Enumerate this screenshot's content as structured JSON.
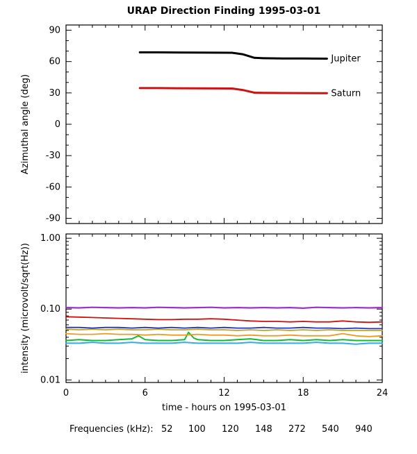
{
  "title": "URAP Direction Finding  1995-03-01",
  "chart_data": [
    {
      "id": "azimuth",
      "type": "line",
      "ylabel": "Azimuthal angle (deg)",
      "yscale": "linear",
      "ylim": [
        -95,
        95
      ],
      "yticks": [
        {
          "v": 90,
          "label": "90"
        },
        {
          "v": 60,
          "label": "60"
        },
        {
          "v": 30,
          "label": "30"
        },
        {
          "v": 0,
          "label": "0"
        },
        {
          "v": -30,
          "label": "-30"
        },
        {
          "v": -60,
          "label": "-60"
        },
        {
          "v": -90,
          "label": "-90"
        }
      ],
      "yminor": 10,
      "xlim": [
        0,
        24
      ],
      "xticks": [
        0,
        6,
        12,
        18,
        24
      ],
      "xminor": 1,
      "show_xtick_labels": false,
      "xlabel": "",
      "series": [
        {
          "name": "Jupiter",
          "color": "#000000",
          "width": 3,
          "end_label": "Jupiter",
          "points": [
            [
              5.6,
              68.8
            ],
            [
              7,
              68.8
            ],
            [
              8.5,
              68.7
            ],
            [
              10,
              68.6
            ],
            [
              11.5,
              68.5
            ],
            [
              12.6,
              68.4
            ],
            [
              13.4,
              67.0
            ],
            [
              14.3,
              63.6
            ],
            [
              15,
              63.2
            ],
            [
              16.5,
              63.0
            ],
            [
              18,
              62.9
            ],
            [
              19.8,
              62.8
            ]
          ]
        },
        {
          "name": "Saturn",
          "color": "#cc1111",
          "width": 3,
          "end_label": "Saturn",
          "points": [
            [
              5.6,
              34.6
            ],
            [
              7,
              34.6
            ],
            [
              8.5,
              34.5
            ],
            [
              10,
              34.4
            ],
            [
              11.5,
              34.3
            ],
            [
              12.6,
              34.2
            ],
            [
              13.4,
              32.8
            ],
            [
              14.3,
              30.2
            ],
            [
              15,
              30.0
            ],
            [
              16.5,
              29.9
            ],
            [
              18,
              29.8
            ],
            [
              19.8,
              29.7
            ]
          ]
        }
      ]
    },
    {
      "id": "intensity",
      "type": "line",
      "ylabel": "intensity (microvolt/sqrt(Hz))",
      "yscale": "log",
      "ylim": [
        0.0092,
        1.15
      ],
      "yticks": [
        {
          "v": 1.0,
          "label": "1.00"
        },
        {
          "v": 0.1,
          "label": "0.10"
        },
        {
          "v": 0.01,
          "label": "0.01"
        }
      ],
      "xlim": [
        0,
        24
      ],
      "xticks": [
        0,
        6,
        12,
        18,
        24
      ],
      "xminor": 1,
      "show_xtick_labels": true,
      "xlabel": "time - hours on 1995-03-01",
      "series": [
        {
          "name": "272",
          "color": "#33aaee",
          "width": 2,
          "points": [
            [
              0,
              0.033
            ],
            [
              1,
              0.033
            ],
            [
              2,
              0.034
            ],
            [
              3,
              0.033
            ],
            [
              4,
              0.033
            ],
            [
              5,
              0.034
            ],
            [
              6,
              0.033
            ],
            [
              7,
              0.033
            ],
            [
              8,
              0.033
            ],
            [
              9,
              0.034
            ],
            [
              10,
              0.033
            ],
            [
              11,
              0.033
            ],
            [
              12,
              0.033
            ],
            [
              13,
              0.033
            ],
            [
              14,
              0.034
            ],
            [
              15,
              0.033
            ],
            [
              16,
              0.033
            ],
            [
              17,
              0.033
            ],
            [
              18,
              0.033
            ],
            [
              19,
              0.034
            ],
            [
              20,
              0.033
            ],
            [
              21,
              0.033
            ],
            [
              22,
              0.032
            ],
            [
              23,
              0.033
            ],
            [
              24,
              0.033
            ]
          ]
        },
        {
          "name": "148",
          "color": "#11bb33",
          "width": 2,
          "points": [
            [
              0,
              0.036
            ],
            [
              1,
              0.037
            ],
            [
              2,
              0.036
            ],
            [
              3,
              0.036
            ],
            [
              4,
              0.037
            ],
            [
              5,
              0.038
            ],
            [
              5.5,
              0.042
            ],
            [
              6,
              0.037
            ],
            [
              7,
              0.036
            ],
            [
              8,
              0.036
            ],
            [
              9,
              0.037
            ],
            [
              9.3,
              0.047
            ],
            [
              9.7,
              0.039
            ],
            [
              10,
              0.037
            ],
            [
              11,
              0.036
            ],
            [
              12,
              0.036
            ],
            [
              13,
              0.037
            ],
            [
              14,
              0.038
            ],
            [
              15,
              0.036
            ],
            [
              16,
              0.036
            ],
            [
              17,
              0.037
            ],
            [
              18,
              0.036
            ],
            [
              19,
              0.037
            ],
            [
              20,
              0.036
            ],
            [
              21,
              0.037
            ],
            [
              22,
              0.036
            ],
            [
              23,
              0.036
            ],
            [
              24,
              0.036
            ]
          ]
        },
        {
          "name": "100",
          "color": "#ee9922",
          "width": 1.8,
          "points": [
            [
              0,
              0.045
            ],
            [
              1,
              0.044
            ],
            [
              2,
              0.044
            ],
            [
              3,
              0.045
            ],
            [
              4,
              0.044
            ],
            [
              5,
              0.044
            ],
            [
              6,
              0.043
            ],
            [
              7,
              0.044
            ],
            [
              8,
              0.043
            ],
            [
              9,
              0.043
            ],
            [
              10,
              0.044
            ],
            [
              11,
              0.043
            ],
            [
              12,
              0.043
            ],
            [
              13,
              0.042
            ],
            [
              14,
              0.043
            ],
            [
              15,
              0.042
            ],
            [
              16,
              0.042
            ],
            [
              17,
              0.043
            ],
            [
              18,
              0.042
            ],
            [
              19,
              0.042
            ],
            [
              20,
              0.042
            ],
            [
              21,
              0.045
            ],
            [
              22,
              0.042
            ],
            [
              23,
              0.041
            ],
            [
              24,
              0.042
            ]
          ]
        },
        {
          "name": "120",
          "color": "#c2a41c",
          "width": 1.8,
          "points": [
            [
              0,
              0.052
            ],
            [
              1,
              0.051
            ],
            [
              2,
              0.052
            ],
            [
              3,
              0.051
            ],
            [
              4,
              0.052
            ],
            [
              5,
              0.051
            ],
            [
              6,
              0.051
            ],
            [
              7,
              0.052
            ],
            [
              8,
              0.051
            ],
            [
              9,
              0.051
            ],
            [
              10,
              0.052
            ],
            [
              11,
              0.051
            ],
            [
              12,
              0.051
            ],
            [
              13,
              0.05
            ],
            [
              14,
              0.051
            ],
            [
              15,
              0.05
            ],
            [
              16,
              0.051
            ],
            [
              17,
              0.05
            ],
            [
              18,
              0.051
            ],
            [
              19,
              0.05
            ],
            [
              20,
              0.051
            ],
            [
              21,
              0.05
            ],
            [
              22,
              0.05
            ],
            [
              23,
              0.05
            ],
            [
              24,
              0.05
            ]
          ]
        },
        {
          "name": "540",
          "color": "#2233bb",
          "width": 1.8,
          "points": [
            [
              0,
              0.055
            ],
            [
              1,
              0.055
            ],
            [
              2,
              0.054
            ],
            [
              3,
              0.055
            ],
            [
              4,
              0.055
            ],
            [
              5,
              0.054
            ],
            [
              6,
              0.055
            ],
            [
              7,
              0.054
            ],
            [
              8,
              0.055
            ],
            [
              9,
              0.054
            ],
            [
              10,
              0.055
            ],
            [
              11,
              0.054
            ],
            [
              12,
              0.055
            ],
            [
              13,
              0.054
            ],
            [
              14,
              0.054
            ],
            [
              15,
              0.055
            ],
            [
              16,
              0.054
            ],
            [
              17,
              0.054
            ],
            [
              18,
              0.055
            ],
            [
              19,
              0.054
            ],
            [
              20,
              0.054
            ],
            [
              21,
              0.053
            ],
            [
              22,
              0.054
            ],
            [
              23,
              0.053
            ],
            [
              24,
              0.053
            ]
          ]
        },
        {
          "name": "52",
          "color": "#cc1111",
          "width": 1.8,
          "points": [
            [
              0,
              0.078
            ],
            [
              1,
              0.077
            ],
            [
              2,
              0.076
            ],
            [
              3,
              0.075
            ],
            [
              4,
              0.074
            ],
            [
              5,
              0.073
            ],
            [
              6,
              0.072
            ],
            [
              7,
              0.071
            ],
            [
              8,
              0.071
            ],
            [
              9,
              0.072
            ],
            [
              10,
              0.072
            ],
            [
              11,
              0.073
            ],
            [
              12,
              0.072
            ],
            [
              13,
              0.07
            ],
            [
              14,
              0.068
            ],
            [
              15,
              0.067
            ],
            [
              16,
              0.067
            ],
            [
              17,
              0.066
            ],
            [
              18,
              0.067
            ],
            [
              19,
              0.066
            ],
            [
              20,
              0.066
            ],
            [
              21,
              0.068
            ],
            [
              22,
              0.066
            ],
            [
              23,
              0.065
            ],
            [
              24,
              0.066
            ]
          ]
        },
        {
          "name": "940",
          "color": "#9933cc",
          "width": 2.2,
          "points": [
            [
              0,
              0.105
            ],
            [
              1,
              0.104
            ],
            [
              2,
              0.106
            ],
            [
              3,
              0.105
            ],
            [
              4,
              0.104
            ],
            [
              5,
              0.105
            ],
            [
              6,
              0.104
            ],
            [
              7,
              0.106
            ],
            [
              8,
              0.105
            ],
            [
              9,
              0.104
            ],
            [
              10,
              0.105
            ],
            [
              11,
              0.106
            ],
            [
              12,
              0.104
            ],
            [
              13,
              0.105
            ],
            [
              14,
              0.104
            ],
            [
              15,
              0.105
            ],
            [
              16,
              0.104
            ],
            [
              17,
              0.105
            ],
            [
              18,
              0.103
            ],
            [
              19,
              0.106
            ],
            [
              20,
              0.105
            ],
            [
              21,
              0.104
            ],
            [
              22,
              0.105
            ],
            [
              23,
              0.104
            ],
            [
              24,
              0.105
            ]
          ]
        }
      ]
    }
  ],
  "legend": {
    "label": "Frequencies (kHz):",
    "items": [
      {
        "label": "52",
        "color": "#cc1111"
      },
      {
        "label": "100",
        "color": "#ee9922"
      },
      {
        "label": "120",
        "color": "#c2a41c"
      },
      {
        "label": "148",
        "color": "#11bb33"
      },
      {
        "label": "272",
        "color": "#33aaee"
      },
      {
        "label": "540",
        "color": "#2233bb"
      },
      {
        "label": "940",
        "color": "#9933cc"
      }
    ]
  }
}
